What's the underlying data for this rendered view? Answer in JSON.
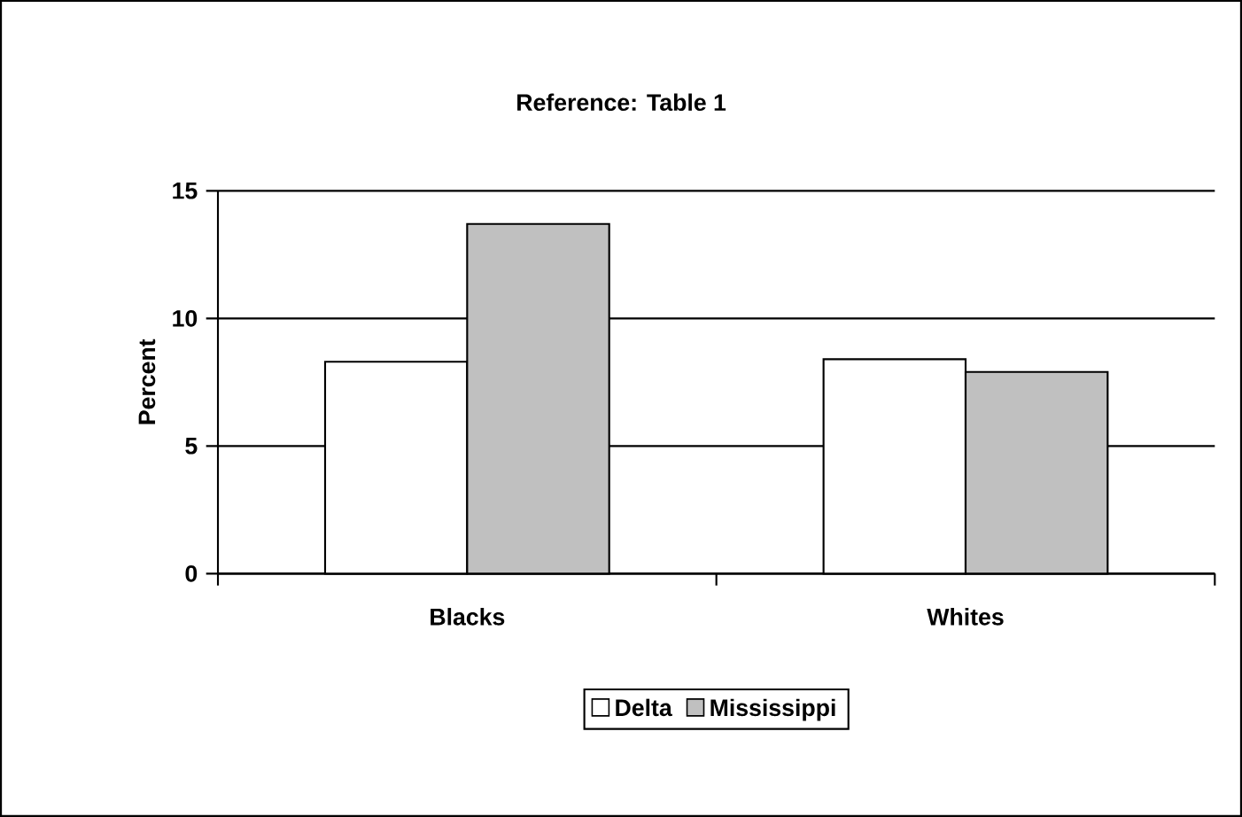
{
  "chart_data": {
    "type": "bar",
    "title": "Reference: Table 1",
    "ylabel": "Percent",
    "categories": [
      "Blacks",
      "Whites"
    ],
    "series": [
      {
        "name": "Delta",
        "color": "#ffffff",
        "values": [
          8.3,
          8.4
        ]
      },
      {
        "name": "Mississippi",
        "color": "#c0c0c0",
        "values": [
          13.7,
          7.9
        ]
      }
    ],
    "ylim": [
      0,
      15
    ],
    "yticks": [
      0,
      5,
      10,
      15
    ],
    "grid": "y",
    "legend": "bottom"
  }
}
